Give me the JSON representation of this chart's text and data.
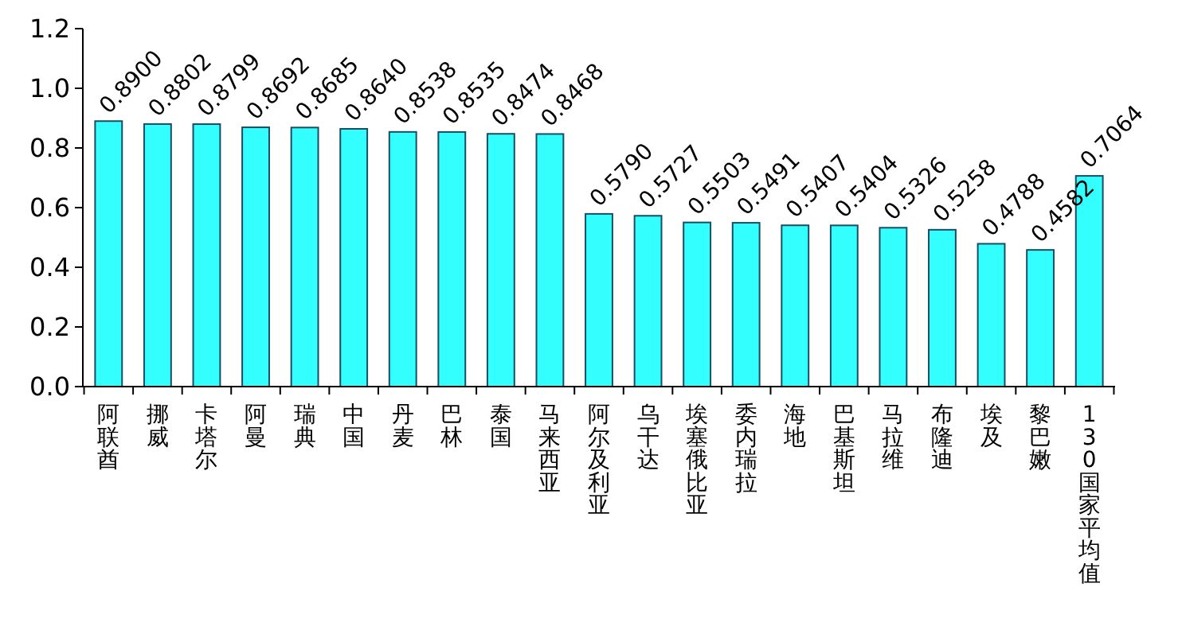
{
  "chart_data": {
    "type": "bar",
    "categories": [
      "阿联酋",
      "挪威",
      "卡塔尔",
      "阿曼",
      "瑞典",
      "中国",
      "丹麦",
      "巴林",
      "泰国",
      "马来西亚",
      "阿尔及利亚",
      "乌干达",
      "埃塞俄比亚",
      "委内瑞拉",
      "海地",
      "巴基斯坦",
      "马拉维",
      "布隆迪",
      "埃及",
      "黎巴嫩",
      "130国家平均值"
    ],
    "values": [
      0.89,
      0.8802,
      0.8799,
      0.8692,
      0.8685,
      0.864,
      0.8538,
      0.8535,
      0.8474,
      0.8468,
      0.579,
      0.5727,
      0.5503,
      0.5491,
      0.5407,
      0.5404,
      0.5326,
      0.5258,
      0.4788,
      0.4582,
      0.7064
    ],
    "value_labels": [
      "0.8900",
      "0.8802",
      "0.8799",
      "0.8692",
      "0.8685",
      "0.8640",
      "0.8538",
      "0.8535",
      "0.8474",
      "0.8468",
      "0.5790",
      "0.5727",
      "0.5503",
      "0.5491",
      "0.5407",
      "0.5404",
      "0.5326",
      "0.5258",
      "0.4788",
      "0.4582",
      "0.7064"
    ],
    "color": "#33ffff",
    "ylim": [
      0,
      1.2
    ],
    "yticks": [
      {
        "value": 0,
        "label": "0.0"
      },
      {
        "value": 0.2,
        "label": "0.2"
      },
      {
        "value": 0.4,
        "label": "0.4"
      },
      {
        "value": 0.6,
        "label": "0.6"
      },
      {
        "value": 0.8,
        "label": "0.8"
      },
      {
        "value": 1,
        "label": "1.0"
      },
      {
        "value": 1.2,
        "label": "1.2"
      }
    ],
    "grid": false
  }
}
